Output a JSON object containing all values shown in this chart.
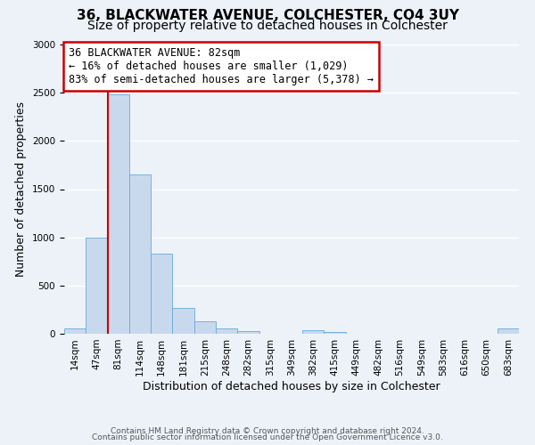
{
  "title": "36, BLACKWATER AVENUE, COLCHESTER, CO4 3UY",
  "subtitle": "Size of property relative to detached houses in Colchester",
  "xlabel": "Distribution of detached houses by size in Colchester",
  "ylabel": "Number of detached properties",
  "bin_labels": [
    "14sqm",
    "47sqm",
    "81sqm",
    "114sqm",
    "148sqm",
    "181sqm",
    "215sqm",
    "248sqm",
    "282sqm",
    "315sqm",
    "349sqm",
    "382sqm",
    "415sqm",
    "449sqm",
    "482sqm",
    "516sqm",
    "549sqm",
    "583sqm",
    "616sqm",
    "650sqm",
    "683sqm"
  ],
  "bar_values": [
    55,
    1000,
    2480,
    1650,
    830,
    270,
    125,
    55,
    30,
    0,
    0,
    40,
    15,
    0,
    0,
    0,
    0,
    0,
    0,
    0,
    55
  ],
  "bar_color": "#c8d9ee",
  "bar_edge_color": "#6aaad4",
  "vline_color": "#cc0000",
  "annotation_title": "36 BLACKWATER AVENUE: 82sqm",
  "annotation_line1": "← 16% of detached houses are smaller (1,029)",
  "annotation_line2": "83% of semi-detached houses are larger (5,378) →",
  "annotation_box_color": "#ffffff",
  "annotation_box_edge": "#cc0000",
  "ylim": [
    0,
    3000
  ],
  "yticks": [
    0,
    500,
    1000,
    1500,
    2000,
    2500,
    3000
  ],
  "footer1": "Contains HM Land Registry data © Crown copyright and database right 2024.",
  "footer2": "Contains public sector information licensed under the Open Government Licence v3.0.",
  "background_color": "#edf2f9",
  "plot_bg_color": "#edf2f9",
  "grid_color": "#ffffff",
  "title_fontsize": 11,
  "subtitle_fontsize": 10,
  "axis_label_fontsize": 9,
  "tick_fontsize": 7.5,
  "footer_fontsize": 6.5,
  "annotation_fontsize": 8.5
}
